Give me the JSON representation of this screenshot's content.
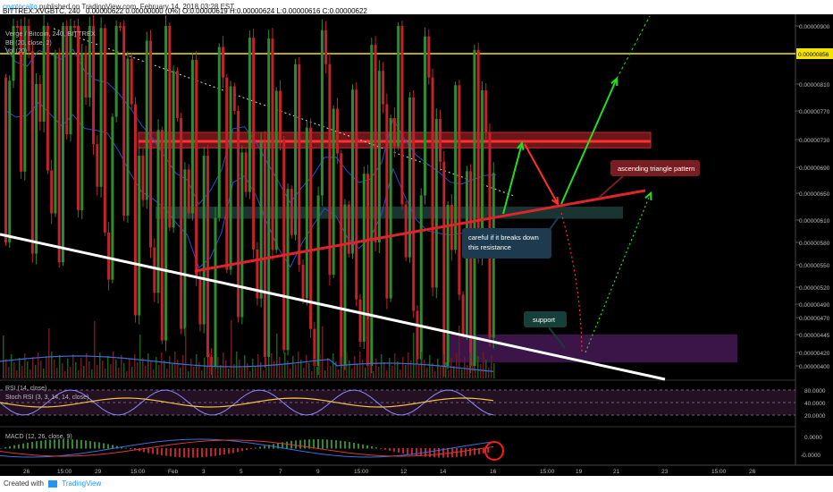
{
  "header": {
    "author": "cryptocalto",
    "published": "published on TradingView.com, February 14, 2018 03:28 EST",
    "symbol_line": "BITTREX:XVGBTC, 240",
    "ohlc_line": "0.00000622 0.00000000 (0%) O:0.00000619 H:0.00000624 L:0.00000616 C:0.00000622"
  },
  "legend": {
    "title": "Verge / Bitcoin, 240, BITTREX",
    "bb": "BB (20, close, 2)",
    "vol": "Vol (20)"
  },
  "footer": {
    "created": "Created with",
    "brand": "TradingView"
  },
  "colors": {
    "bg": "#000000",
    "up": "#2e8b2e",
    "down": "#c2222b",
    "resistance_zone": "#c62830",
    "support_zone": "#2e5f5a",
    "purple_zone": "#4a1a5a",
    "trend": "#e0242b",
    "arrow_green": "#22dd22",
    "white_line": "#ffffff",
    "yellow_line": "#f5e400",
    "bb": "#2c4ccf",
    "rsi": "#f5c542",
    "stoch": "#8a8aff"
  },
  "annotations": {
    "triangle": "ascending triangle pattern",
    "careful": "careful if it breaks down this resistance",
    "support": "support"
  },
  "chart_data": [
    {
      "type": "line",
      "title": "Verge / Bitcoin, 240, BITTREX",
      "y_axis_labels": [
        "0.00000900",
        "0.00000856",
        "0.00000810",
        "0.00000770",
        "0.00000730",
        "0.00000690",
        "0.00000650",
        "0.00000610",
        "0.00000580",
        "0.00000550",
        "0.00000520",
        "0.00000490",
        "0.00000470",
        "0.00000445",
        "0.00000420",
        "0.00000400"
      ],
      "highlighted_price": "0.00000856",
      "x_axis_labels": [
        "26",
        "15:00",
        "29",
        "15:00",
        "Feb",
        "3",
        "5",
        "7",
        "9",
        "15:00",
        "12",
        "14",
        "16",
        "15:00",
        "19",
        "21",
        "23",
        "15:00",
        "26"
      ],
      "price_range": [
        4e-06,
        9e-06
      ],
      "price_path": [
        [
          0,
          8.2e-06
        ],
        [
          2,
          8.05e-06
        ],
        [
          4,
          8e-06
        ],
        [
          6,
          8.15e-06
        ],
        [
          8,
          8e-06
        ],
        [
          10,
          7.9e-06
        ],
        [
          12,
          8.12e-06
        ],
        [
          14,
          7.9e-06
        ],
        [
          16,
          7.8e-06
        ],
        [
          18,
          7.7e-06
        ],
        [
          20,
          7.45e-06
        ],
        [
          22,
          7.2e-06
        ],
        [
          24,
          7e-06
        ],
        [
          26,
          6.9e-06
        ],
        [
          28,
          6.7e-06
        ],
        [
          30,
          6.4e-06
        ],
        [
          32,
          6.2e-06
        ],
        [
          34,
          5.8e-06
        ],
        [
          36,
          6e-06
        ],
        [
          38,
          6.4e-06
        ],
        [
          40,
          7.1e-06
        ],
        [
          42,
          7.12e-06
        ],
        [
          44,
          6.8e-06
        ],
        [
          46,
          6.4e-06
        ],
        [
          48,
          6.1e-06
        ],
        [
          50,
          5.9e-06
        ],
        [
          52,
          6.2e-06
        ],
        [
          54,
          6.4e-06
        ],
        [
          56,
          6.6e-06
        ],
        [
          58,
          6.5e-06
        ],
        [
          60,
          6.25e-06
        ],
        [
          62,
          6.15e-06
        ],
        [
          64,
          6.3e-06
        ],
        [
          66,
          6.6e-06
        ],
        [
          68,
          7.2e-06
        ],
        [
          70,
          6.8e-06
        ],
        [
          72,
          6.5e-06
        ],
        [
          74,
          6.4e-06
        ],
        [
          76,
          6.38e-06
        ],
        [
          78,
          6.3e-06
        ],
        [
          80,
          6.25e-06
        ],
        [
          82,
          6.22e-06
        ],
        [
          84,
          6.2e-06
        ],
        [
          86,
          6.22e-06
        ]
      ],
      "resistance_zone": [
        7.18e-06,
        7.4e-06
      ],
      "support_zone": [
        6.12e-06,
        6.3e-06
      ],
      "support_target_zone": [
        4.05e-06,
        4.45e-06
      ],
      "ascending_trendline": [
        [
          5.4e-06,
          0
        ],
        [
          6.55e-06,
          1
        ]
      ],
      "yellow_level": 8.56e-06
    },
    {
      "type": "line",
      "series": [
        {
          "name": "RSI (14, close)"
        },
        {
          "name": "Stoch RSI (3, 3, 14, 14, close)"
        }
      ],
      "y_axis_labels": [
        "80.0000",
        "40.0000",
        "20.0000"
      ],
      "ylim": [
        0,
        100
      ]
    },
    {
      "type": "bar",
      "series": [
        {
          "name": "MACD (12, 26, close, 9)"
        }
      ],
      "y_axis_labels": [
        "0.0000",
        "-0.0000"
      ]
    }
  ]
}
